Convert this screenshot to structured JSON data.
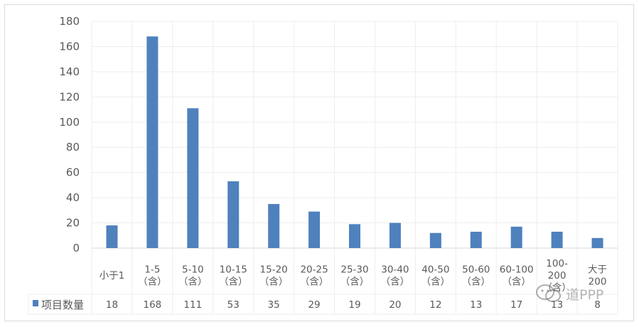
{
  "chart_data": {
    "type": "bar",
    "categories": [
      "小于1",
      "1-5\n（含）",
      "5-10\n（含）",
      "10-15\n（含）",
      "15-20\n（含）",
      "20-25\n（含）",
      "25-30\n（含）",
      "30-40\n（含）",
      "40-50\n（含）",
      "50-60\n（含）",
      "60-100\n（含）",
      "100-\n200\n（含）",
      "大于\n200"
    ],
    "series": [
      {
        "name": "项目数量",
        "values": [
          18,
          168,
          111,
          53,
          35,
          29,
          19,
          20,
          12,
          13,
          17,
          13,
          8
        ],
        "color": "#4f81bd"
      }
    ],
    "ylim": [
      0,
      180
    ],
    "yticks": [
      0,
      20,
      40,
      60,
      80,
      100,
      120,
      140,
      160,
      180
    ],
    "grid": true,
    "legend": "data-table-left",
    "data_table": true
  },
  "watermark": {
    "text": "道PPP"
  }
}
